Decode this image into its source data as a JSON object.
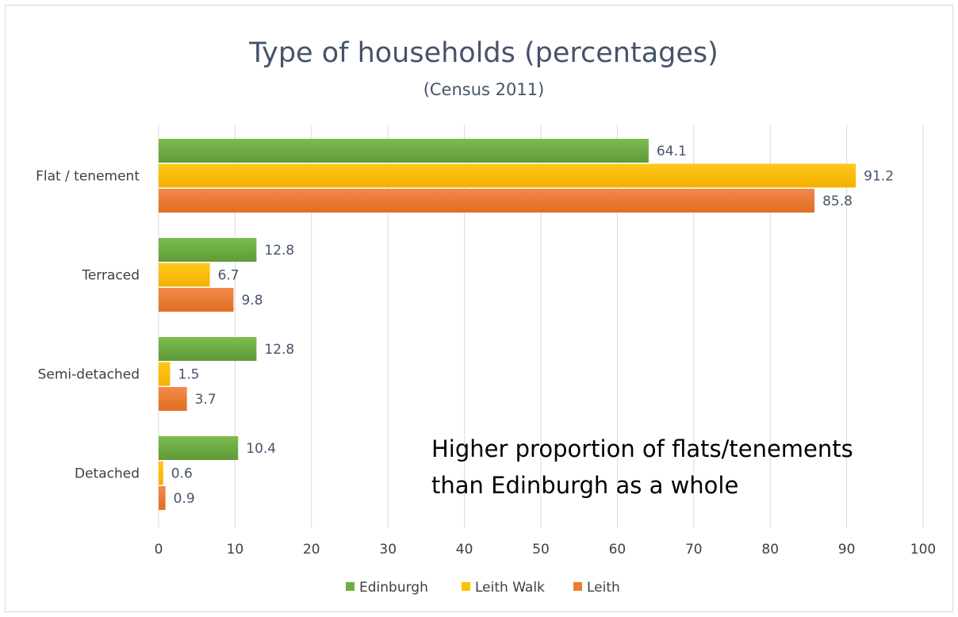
{
  "chart_data": {
    "type": "bar",
    "orientation": "horizontal",
    "title": "Type of households (percentages)",
    "subtitle": "(Census 2011)",
    "categories": [
      "Flat / tenement",
      "Terraced",
      "Semi-detached",
      "Detached"
    ],
    "series": [
      {
        "name": "Edinburgh",
        "color": "#70ad47",
        "values": [
          64.1,
          12.8,
          12.8,
          10.4
        ]
      },
      {
        "name": "Leith Walk",
        "color": "#ffc000",
        "values": [
          91.2,
          6.7,
          1.5,
          0.6
        ]
      },
      {
        "name": "Leith",
        "color": "#ed7d31",
        "values": [
          85.8,
          9.8,
          3.7,
          0.9
        ]
      }
    ],
    "x_ticks": [
      "0",
      "10",
      "20",
      "30",
      "40",
      "50",
      "60",
      "70",
      "80",
      "90",
      "100"
    ],
    "xlim": [
      0,
      100
    ],
    "grid": true,
    "legend_position": "bottom",
    "annotation": [
      "Higher proportion of flats/tenements",
      "than Edinburgh as a whole"
    ]
  }
}
